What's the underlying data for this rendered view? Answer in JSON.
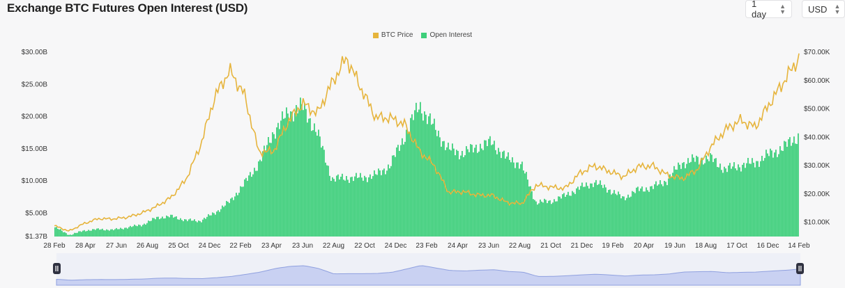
{
  "header": {
    "title": "Exchange BTC Futures Open Interest (USD)",
    "interval": "1 day",
    "currency": "USD"
  },
  "colors": {
    "open_interest": "#3ecf7b",
    "btc_price": "#e6b43c",
    "navigator_fill": "#c9d1f2",
    "navigator_line": "#8fa0df"
  },
  "icons": {
    "select_chevron": "updown-chevron-icon",
    "handle": "pause-handle-icon"
  },
  "chart_data": {
    "type": "bar",
    "legend": [
      "BTC Price",
      "Open Interest"
    ],
    "legend_position": "top-center",
    "x_tick_labels": [
      "28 Feb",
      "28 Apr",
      "27 Jun",
      "26 Aug",
      "25 Oct",
      "24 Dec",
      "22 Feb",
      "23 Apr",
      "23 Jun",
      "22 Aug",
      "22 Oct",
      "24 Dec",
      "23 Feb",
      "24 Apr",
      "23 Jun",
      "22 Aug",
      "21 Oct",
      "21 Dec",
      "19 Feb",
      "20 Apr",
      "19 Jun",
      "18 Aug",
      "17 Oct",
      "16 Dec",
      "14 Feb"
    ],
    "y_left_ticks": [
      "$1.37B",
      "$5.00B",
      "$10.00B",
      "$15.00B",
      "$20.00B",
      "$25.00B",
      "$30.00B"
    ],
    "y_left_tick_values": [
      1.37,
      5,
      10,
      15,
      20,
      25,
      30
    ],
    "y_right_ticks": [
      "$10.00K",
      "$20.00K",
      "$30.00K",
      "$40.00K",
      "$50.00K",
      "$60.00K",
      "$70.00K"
    ],
    "y_right_tick_values": [
      10,
      20,
      30,
      40,
      50,
      60,
      70
    ],
    "ylim_left": [
      1.37,
      30
    ],
    "ylim_right": [
      5,
      70
    ],
    "grid": false,
    "series": [
      {
        "name": "Open Interest",
        "axis": "left",
        "unit": "billion USD",
        "values": [
          2.8,
          1.6,
          2.3,
          2.5,
          2.4,
          2.8,
          3.2,
          4.3,
          4.5,
          3.9,
          3.8,
          5.1,
          6.8,
          9.6,
          12.8,
          17.6,
          20.5,
          21.5,
          17.5,
          10.3,
          10.5,
          10.5,
          10.9,
          12.4,
          17.0,
          21.8,
          18.4,
          14.9,
          14.3,
          15.3,
          16.0,
          13.5,
          12.6,
          6.7,
          6.8,
          7.7,
          8.9,
          9.8,
          8.7,
          7.3,
          8.6,
          9.0,
          10.1,
          12.8,
          13.3,
          13.5,
          11.8,
          12.4,
          12.8,
          14.1,
          15.2,
          17.0
        ]
      },
      {
        "name": "BTC Price",
        "axis": "right",
        "unit": "thousand USD",
        "values": [
          8.8,
          6.9,
          9.5,
          11.3,
          11.2,
          11.8,
          13.3,
          15.6,
          18.8,
          25.0,
          37.0,
          54.5,
          63.5,
          55.2,
          34.9,
          35.0,
          45.5,
          52.0,
          48.3,
          59.0,
          68.0,
          57.3,
          47.0,
          46.8,
          44.5,
          35.2,
          30.2,
          20.6,
          20.8,
          19.6,
          19.5,
          17.0,
          16.6,
          23.2,
          22.4,
          22.0,
          27.4,
          30.0,
          28.0,
          26.1,
          29.7,
          29.9,
          26.6,
          25.4,
          28.5,
          37.0,
          42.8,
          46.0,
          43.5,
          52.0,
          60.0,
          68.0
        ]
      }
    ]
  }
}
